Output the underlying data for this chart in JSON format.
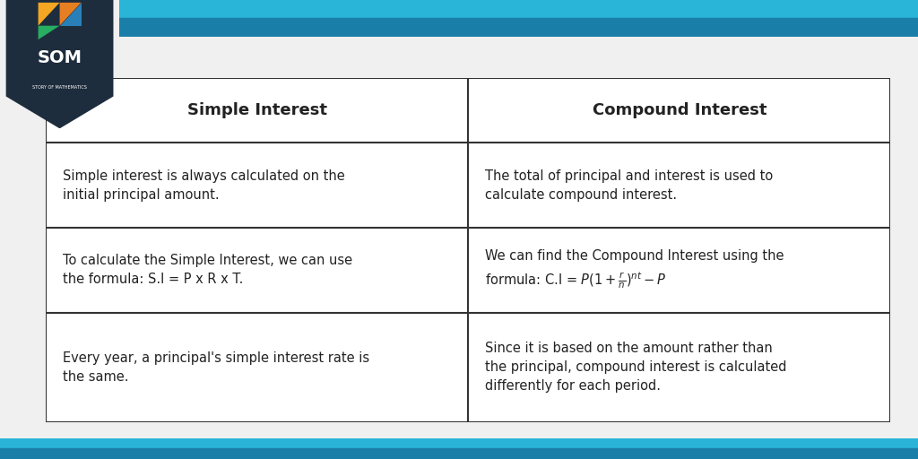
{
  "bg_color": "#f0f0f0",
  "table_bg": "#ffffff",
  "header_bg": "#ffffff",
  "border_color": "#333333",
  "header_color": "#222222",
  "text_color": "#222222",
  "col1_header": "Simple Interest",
  "col2_header": "Compound Interest",
  "rows": [
    [
      "Simple interest is always calculated on the\ninitial principal amount.",
      "The total of principal and interest is used to\ncalculate compound interest."
    ],
    [
      "To calculate the Simple Interest, we can use\nthe formula: S.I = P x R x T.",
      "We can find the Compound Interest using the\nformula: C.I = $ P(1 + \\frac{r}{n})^{nt} - P $"
    ],
    [
      "Every year, a principal's simple interest rate is\nthe same.",
      "Since it is based on the amount rather than\nthe principal, compound interest is calculated\ndifferently for each period."
    ]
  ],
  "stripe_color1": "#29b5d8",
  "stripe_color2": "#1a7fa8",
  "logo_bg": "#1e2d3d",
  "figsize": [
    10.24,
    5.12
  ],
  "dpi": 100
}
